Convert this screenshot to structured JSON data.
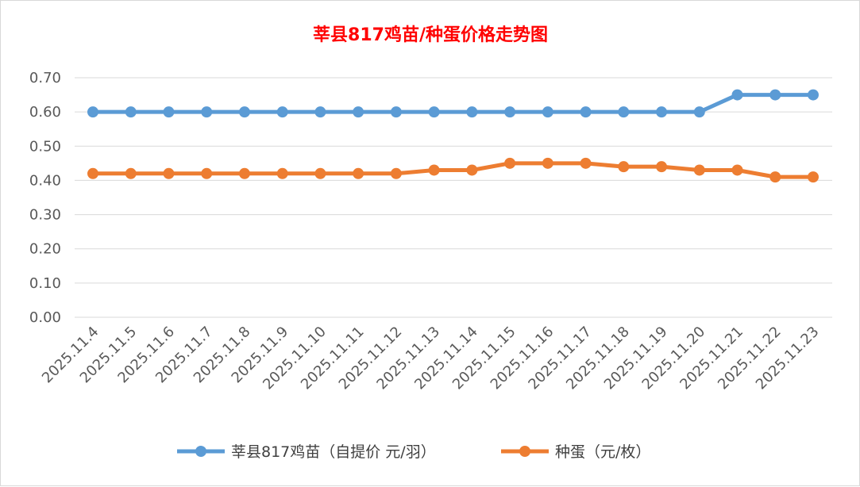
{
  "chart_data": {
    "type": "line",
    "title": "莘县817鸡苗/种蛋价格走势图",
    "xlabel": "",
    "ylabel": "",
    "ylim": [
      0,
      0.7
    ],
    "yticks": [
      "0.00",
      "0.10",
      "0.20",
      "0.30",
      "0.40",
      "0.50",
      "0.60",
      "0.70"
    ],
    "grid": true,
    "legend_position": "bottom",
    "categories": [
      "2025.11.4",
      "2025.11.5",
      "2025.11.6",
      "2025.11.7",
      "2025.11.8",
      "2025.11.9",
      "2025.11.10",
      "2025.11.11",
      "2025.11.12",
      "2025.11.13",
      "2025.11.14",
      "2025.11.15",
      "2025.11.16",
      "2025.11.17",
      "2025.11.18",
      "2025.11.19",
      "2025.11.20",
      "2025.11.21",
      "2025.11.22",
      "2025.11.23"
    ],
    "series": [
      {
        "name": "莘县817鸡苗（自提价 元/羽）",
        "color": "#5b9bd5",
        "values": [
          0.6,
          0.6,
          0.6,
          0.6,
          0.6,
          0.6,
          0.6,
          0.6,
          0.6,
          0.6,
          0.6,
          0.6,
          0.6,
          0.6,
          0.6,
          0.6,
          0.6,
          0.65,
          0.65,
          0.65
        ]
      },
      {
        "name": "种蛋（元/枚）",
        "color": "#ed7d31",
        "values": [
          0.42,
          0.42,
          0.42,
          0.42,
          0.42,
          0.42,
          0.42,
          0.42,
          0.42,
          0.43,
          0.43,
          0.45,
          0.45,
          0.45,
          0.44,
          0.44,
          0.43,
          0.43,
          0.41,
          0.41
        ]
      }
    ]
  }
}
